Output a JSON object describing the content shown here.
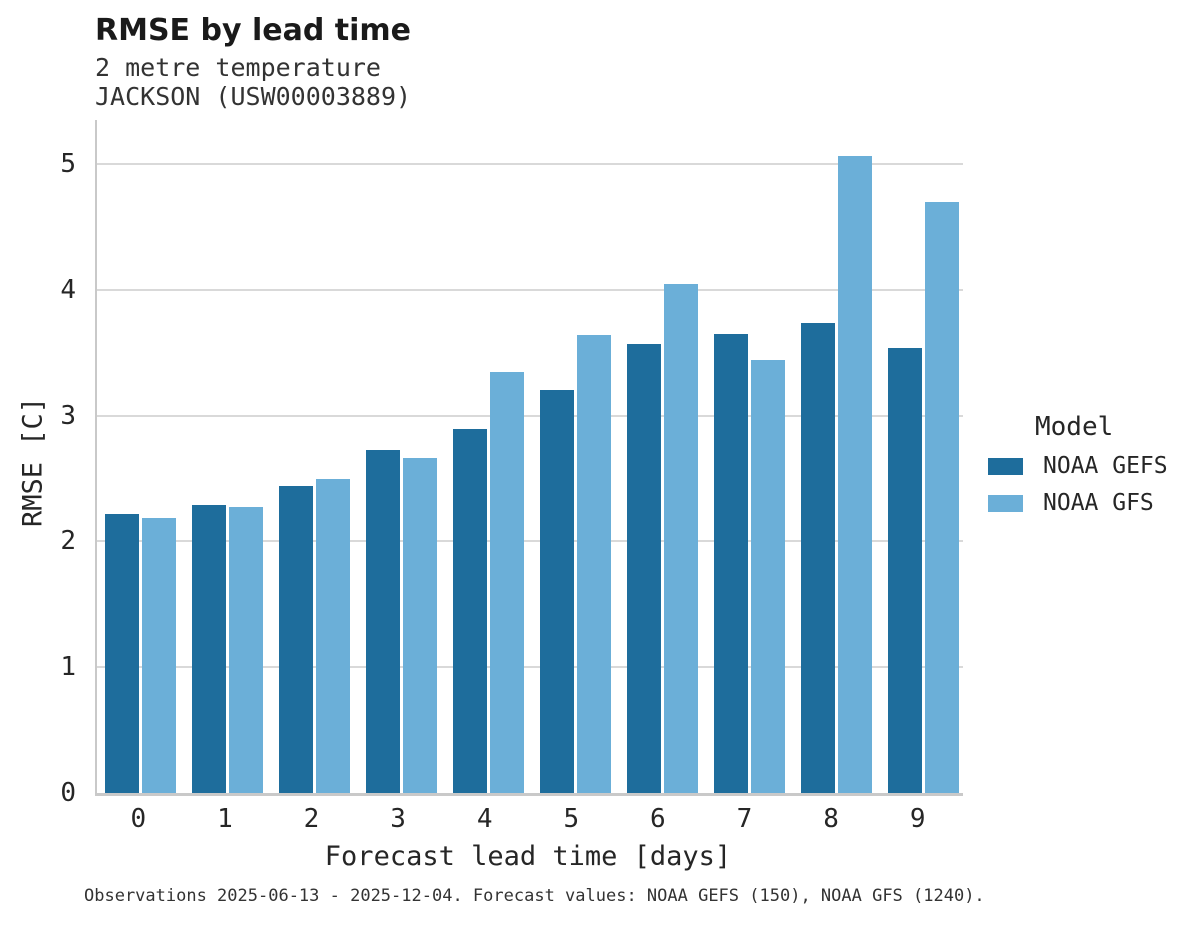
{
  "header": {
    "title": "RMSE by lead time",
    "subtitle_line1": "2 metre temperature",
    "subtitle_line2": "JACKSON (USW00003889)"
  },
  "caption": "Observations 2025-06-13 - 2025-12-04. Forecast values: NOAA GEFS (150), NOAA GFS (1240).",
  "colors": {
    "gefs_dark_blue": "#1e6d9c",
    "gfs_light_blue": "#6bafd8",
    "gridline": "#d9d9d9",
    "spine": "#c9c9c9",
    "text": "#262626"
  },
  "chart_data": {
    "type": "bar",
    "title": "RMSE by lead time",
    "subtitle": [
      "2 metre temperature",
      "JACKSON (USW00003889)"
    ],
    "categories": [
      "0",
      "1",
      "2",
      "3",
      "4",
      "5",
      "6",
      "7",
      "8",
      "9"
    ],
    "series": [
      {
        "name": "NOAA GEFS",
        "color": "#1e6d9c",
        "values": [
          2.22,
          2.29,
          2.44,
          2.73,
          2.89,
          3.2,
          3.57,
          3.65,
          3.74,
          3.54
        ]
      },
      {
        "name": "NOAA GFS",
        "color": "#6bafd8",
        "values": [
          2.19,
          2.27,
          2.5,
          2.66,
          3.35,
          3.64,
          4.05,
          3.44,
          5.06,
          4.7
        ]
      }
    ],
    "xlabel": "Forecast lead time [days]",
    "ylabel": "RMSE [C]",
    "ylim": [
      0,
      5.35
    ],
    "yticks": [
      "0",
      "1",
      "2",
      "3",
      "4",
      "5"
    ],
    "grid": "horizontal",
    "legend_title": "Model",
    "legend_position": "right"
  }
}
